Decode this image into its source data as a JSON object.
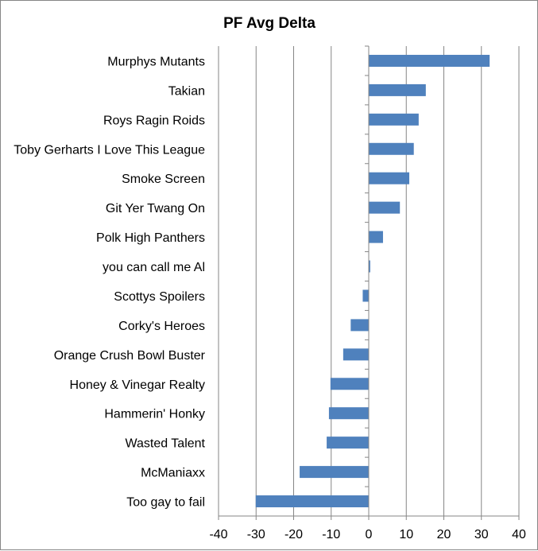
{
  "chart_data": {
    "type": "bar",
    "orientation": "horizontal",
    "title": "PF Avg Delta",
    "xlabel": "",
    "ylabel": "",
    "categories": [
      "Murphys Mutants",
      "Takian",
      "Roys Ragin Roids",
      "Toby Gerharts I Love This League",
      "Smoke Screen",
      "Git Yer Twang On",
      "Polk High Panthers",
      "you can call me Al",
      "Scottys Spoilers",
      "Corky's Heroes",
      "Orange Crush Bowl Buster",
      "Honey & Vinegar Realty",
      "Hammerin' Honky",
      "Wasted Talent",
      "McManiaxx",
      "Too gay to fail"
    ],
    "values": [
      32.2,
      15.2,
      13.3,
      12.0,
      10.8,
      8.3,
      3.8,
      0.4,
      -1.6,
      -4.8,
      -6.8,
      -10.2,
      -10.6,
      -11.2,
      -18.4,
      -30.1
    ],
    "xlim": [
      -40,
      40
    ],
    "xticks": [
      "-40",
      "-30",
      "-20",
      "-10",
      "0",
      "10",
      "20",
      "30",
      "40"
    ],
    "grid": "vertical",
    "legend": "none",
    "bar_color": "#4F81BD"
  }
}
